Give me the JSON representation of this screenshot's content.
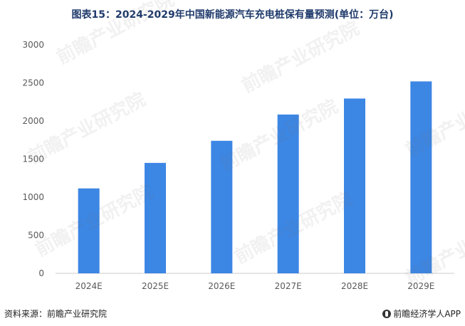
{
  "title": "图表15：2024-2029年中国新能源汽车充电桩保有量预测(单位：万台)",
  "source": "资料来源：前瞻产业研究院",
  "brand": "前瞻经济学人APP",
  "watermark": "前瞻产业研究院",
  "colors": {
    "bar": "#3c86e4",
    "axis": "#cccccc",
    "tick_text": "#595959"
  },
  "chart_data": {
    "type": "bar",
    "title": "图表15：2024-2029年中国新能源汽车充电桩保有量预测(单位：万台)",
    "categories": [
      "2024E",
      "2025E",
      "2026E",
      "2027E",
      "2028E",
      "2029E"
    ],
    "values": [
      1115,
      1450,
      1740,
      2085,
      2295,
      2520
    ],
    "ylim": [
      0,
      3000
    ],
    "yticks": [
      0,
      500,
      1000,
      1500,
      2000,
      2500,
      3000
    ],
    "grid": false,
    "legend": "none"
  }
}
